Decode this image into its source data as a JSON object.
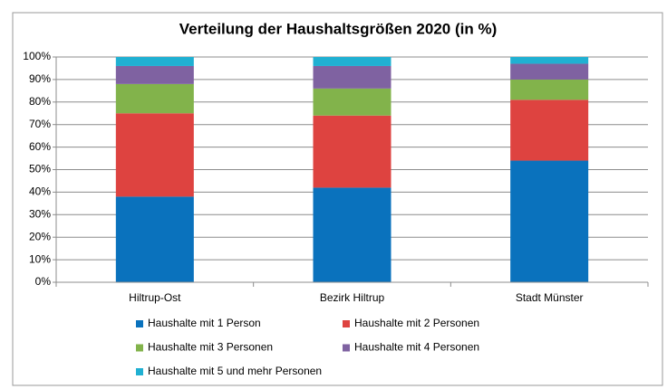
{
  "chart_data": {
    "type": "stacked_bar",
    "title": "Verteilung der Haushaltsgrößen 2020 (in %)",
    "categories": [
      "Hiltrup-Ost",
      "Bezirk Hiltrup",
      "Stadt Münster"
    ],
    "series": [
      {
        "name": "Haushalte mit 1 Person",
        "color": "#0a72bd",
        "values": [
          38,
          42,
          54
        ]
      },
      {
        "name": "Haushalte mit 2 Personen",
        "color": "#de4340",
        "values": [
          37,
          32,
          27
        ]
      },
      {
        "name": "Haushalte mit 3 Personen",
        "color": "#82b34b",
        "values": [
          13,
          12,
          9
        ]
      },
      {
        "name": "Haushalte mit 4 Personen",
        "color": "#7f62a1",
        "values": [
          8,
          10,
          7
        ]
      },
      {
        "name": "Haushalte mit 5 und mehr Personen",
        "color": "#20b0d2",
        "values": [
          4,
          4,
          3
        ]
      }
    ],
    "ylim": [
      0,
      100
    ],
    "yticks": [
      {
        "value": 0,
        "label": "0%"
      },
      {
        "value": 10,
        "label": "10%"
      },
      {
        "value": 20,
        "label": "20%"
      },
      {
        "value": 30,
        "label": "30%"
      },
      {
        "value": 40,
        "label": "40%"
      },
      {
        "value": 50,
        "label": "50%"
      },
      {
        "value": 60,
        "label": "60%"
      },
      {
        "value": 70,
        "label": "70%"
      },
      {
        "value": 80,
        "label": "80%"
      },
      {
        "value": 90,
        "label": "90%"
      },
      {
        "value": 100,
        "label": "100%"
      }
    ],
    "grid": true,
    "legend": "bottom"
  }
}
